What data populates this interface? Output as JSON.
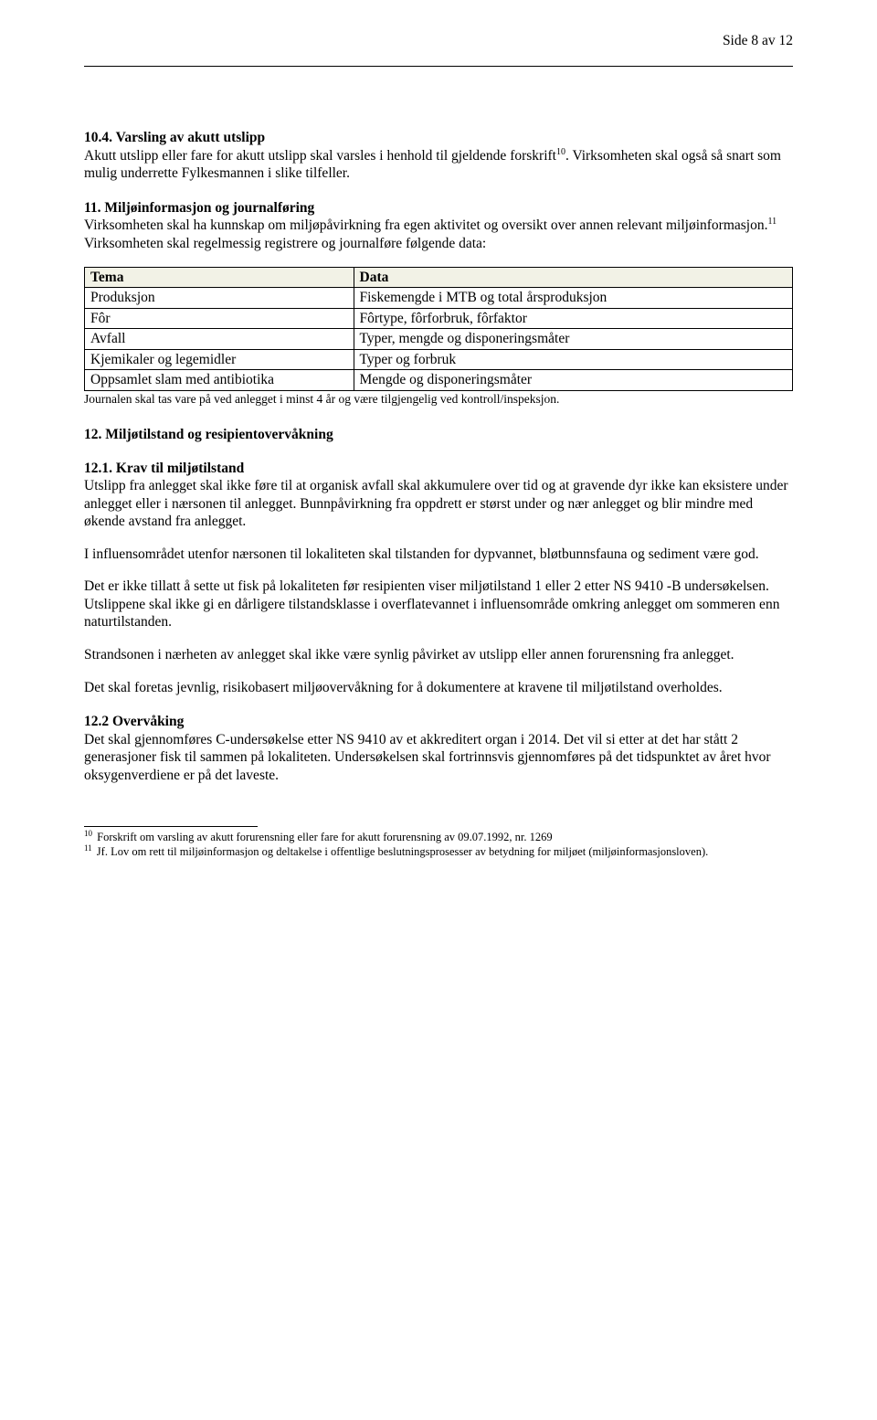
{
  "page_header": "Side 8 av 12",
  "s10_4": {
    "title": "10.4. Varsling av akutt utslipp",
    "body": "Akutt utslipp eller fare for akutt utslipp skal varsles i henhold til gjeldende forskrift",
    "fn": "10",
    "body2": ". Virksomheten skal også så snart som mulig underrette Fylkesmannen i slike tilfeller."
  },
  "s11": {
    "title": "11. Miljøinformasjon og journalføring",
    "body1": "Virksomheten skal ha kunnskap om miljøpåvirkning fra egen aktivitet og oversikt over annen relevant miljøinformasjon.",
    "fn": "11",
    "body2": "Virksomheten skal regelmessig registrere og journalføre følgende data:"
  },
  "table": {
    "columns": [
      "Tema",
      "Data"
    ],
    "rows": [
      [
        "Produksjon",
        "Fiskemengde i MTB og total årsproduksjon"
      ],
      [
        "Fôr",
        "Fôrtype, fôrforbruk, fôrfaktor"
      ],
      [
        "Avfall",
        "Typer, mengde og disponeringsmåter"
      ],
      [
        "Kjemikaler og legemidler",
        "Typer og forbruk"
      ],
      [
        "Oppsamlet slam med antibiotika",
        "Mengde og disponeringsmåter"
      ]
    ],
    "col_widths": [
      "38%",
      "62%"
    ],
    "header_bg": "#f2f2e6",
    "border_color": "#000000"
  },
  "table_note": "Journalen skal tas vare på ved anlegget i minst 4 år og være tilgjengelig ved kontroll/inspeksjon.",
  "s12_title": "12. Miljøtilstand og resipientovervåkning",
  "s12_1": {
    "title": "12.1. Krav til miljøtilstand",
    "p1": "Utslipp fra anlegget skal ikke føre til at organisk avfall skal akkumulere over tid og at gravende dyr ikke kan eksistere under anlegget eller i nærsonen til anlegget. Bunnpåvirkning fra oppdrett er størst under og nær anlegget og blir mindre med økende avstand fra anlegget.",
    "p2": "I influensområdet utenfor nærsonen til lokaliteten skal tilstanden for dypvannet, bløtbunnsfauna og sediment være god.",
    "p3": "Det er ikke tillatt å sette ut fisk på lokaliteten før resipienten viser miljøtilstand 1 eller 2 etter NS 9410 -B undersøkelsen. Utslippene skal ikke gi en dårligere tilstandsklasse i overflatevannet i influensområde omkring anlegget om sommeren enn naturtilstanden.",
    "p4": "Strandsonen i nærheten av anlegget skal ikke være synlig påvirket av utslipp eller annen forurensning fra anlegget.",
    "p5": "Det skal foretas jevnlig, risikobasert miljøovervåkning for å dokumentere at kravene til miljøtilstand overholdes."
  },
  "s12_2": {
    "title": "12.2 Overvåking",
    "p1": "Det skal gjennomføres C-undersøkelse etter NS 9410 av et akkreditert organ i 2014. Det vil si etter at det har stått 2 generasjoner fisk til sammen på lokaliteten. Undersøkelsen skal fortrinnsvis gjennomføres på det tidspunktet av året hvor oksygenverdiene er på det laveste."
  },
  "footnotes": {
    "f10": {
      "num": "10",
      "text": " Forskrift om varsling av akutt forurensning eller fare for akutt forurensning av 09.07.1992, nr. 1269"
    },
    "f11": {
      "num": "11",
      "text": " Jf. Lov om rett til miljøinformasjon og deltakelse i offentlige beslutningsprosesser av betydning for miljøet (miljøinformasjonsloven)."
    }
  }
}
